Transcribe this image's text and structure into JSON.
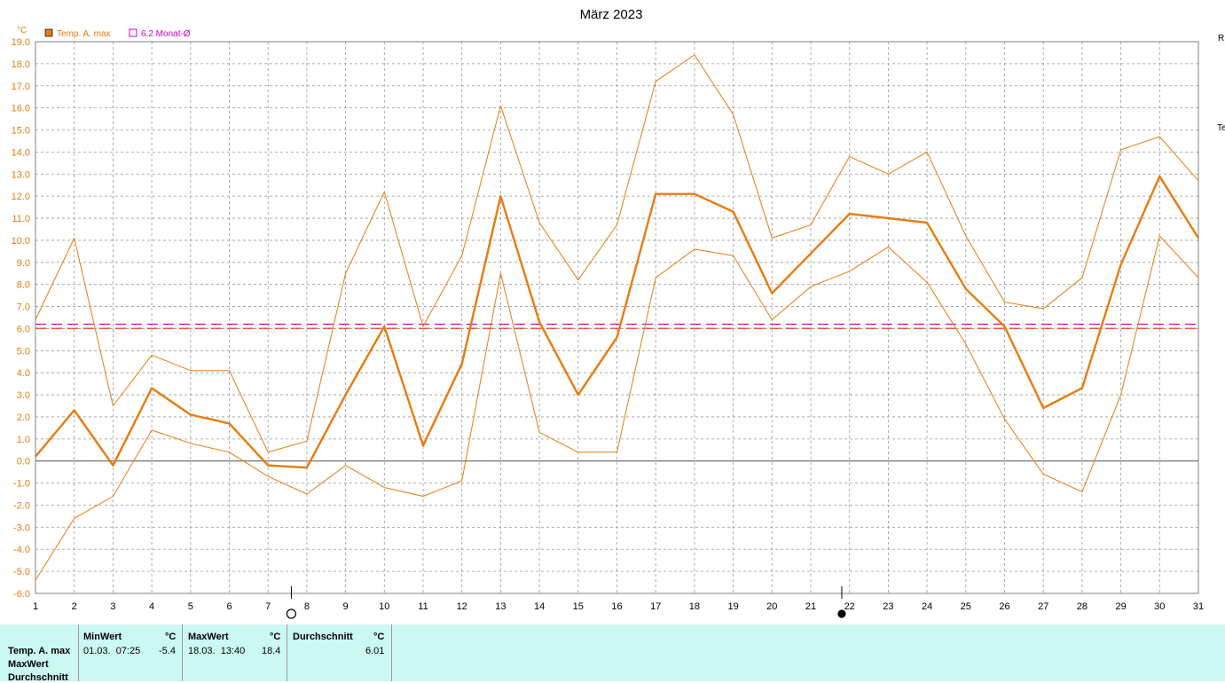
{
  "chart_data": {
    "type": "line",
    "title": "März 2023",
    "unit_label": "°C",
    "x": [
      1,
      2,
      3,
      4,
      5,
      6,
      7,
      8,
      9,
      10,
      11,
      12,
      13,
      14,
      15,
      16,
      17,
      18,
      19,
      20,
      21,
      22,
      23,
      24,
      25,
      26,
      27,
      28,
      29,
      30,
      31
    ],
    "xlim": [
      1,
      31
    ],
    "ylim": [
      -6.0,
      19.0
    ],
    "y_ticks": [
      "19.0",
      "18.0",
      "17.0",
      "16.0",
      "15.0",
      "14.0",
      "13.0",
      "12.0",
      "11.0",
      "10.0",
      "9.0",
      "8.0",
      "7.0",
      "6.0",
      "5.0",
      "4.0",
      "3.0",
      "2.0",
      "1.0",
      "0.0",
      "-1.0",
      "-2.0",
      "-3.0",
      "-4.0",
      "-5.0",
      "-6.0"
    ],
    "grid": true,
    "legend_position": "top-left",
    "legend": [
      {
        "label": "Temp. A. max",
        "color": "#e87b10"
      },
      {
        "label": "6.2 Monat-Ø",
        "color": "#cc00cc"
      }
    ],
    "series": [
      {
        "name": "Temp. A. max",
        "role": "mean",
        "color": "#e87b10",
        "values": [
          0.2,
          2.3,
          -0.2,
          3.3,
          2.1,
          1.7,
          -0.2,
          -0.3,
          3.0,
          6.1,
          0.7,
          4.4,
          12.0,
          6.3,
          3.0,
          5.6,
          12.1,
          12.1,
          11.3,
          7.6,
          9.4,
          11.2,
          11.0,
          10.8,
          7.8,
          6.1,
          2.4,
          3.3,
          8.9,
          12.9,
          10.1
        ]
      },
      {
        "role": "max",
        "color": "#e87b10",
        "values": [
          6.4,
          10.1,
          2.5,
          4.8,
          4.1,
          4.1,
          0.4,
          0.9,
          8.5,
          12.2,
          6.1,
          9.3,
          16.1,
          10.8,
          8.2,
          10.7,
          17.2,
          18.4,
          15.7,
          10.1,
          10.7,
          13.8,
          13.0,
          14.0,
          10.2,
          7.2,
          6.9,
          8.3,
          14.1,
          14.7,
          12.7
        ]
      },
      {
        "role": "min",
        "color": "#e87b10",
        "values": [
          -5.4,
          -2.6,
          -1.6,
          1.4,
          0.8,
          0.4,
          -0.7,
          -1.5,
          -0.2,
          -1.2,
          -1.6,
          -0.9,
          8.5,
          1.3,
          0.4,
          0.4,
          8.3,
          9.6,
          9.3,
          6.4,
          7.9,
          8.6,
          9.7,
          8.1,
          5.3,
          1.9,
          -0.6,
          -1.4,
          3.0,
          10.2,
          8.3
        ]
      }
    ],
    "reference_lines": [
      {
        "name": "6.2 Monat-Ø",
        "y": 6.2,
        "color": "#cc00cc",
        "dash": true
      },
      {
        "y": 6.01,
        "color": "#ff2a00",
        "dash": true
      }
    ],
    "moon_phases": [
      {
        "day": 7.6,
        "symbol": "○",
        "name": "full-moon"
      },
      {
        "day": 21.8,
        "symbol": "●",
        "name": "new-moon"
      }
    ]
  },
  "stats": {
    "row_labels": [
      "Temp. A. max",
      "MaxWert",
      "Durchschnitt"
    ],
    "min": {
      "header": "MinWert",
      "unit": "°C",
      "datetime": "01.03.  07:25",
      "value": "-5.4"
    },
    "max": {
      "header": "MaxWert",
      "unit": "°C",
      "datetime": "18.03.  13:40",
      "value": "18.4"
    },
    "avg": {
      "header": "Durchschnitt",
      "unit": "°C",
      "value": "6.01"
    }
  },
  "right_edge": {
    "top": "R",
    "middle": "Te"
  }
}
